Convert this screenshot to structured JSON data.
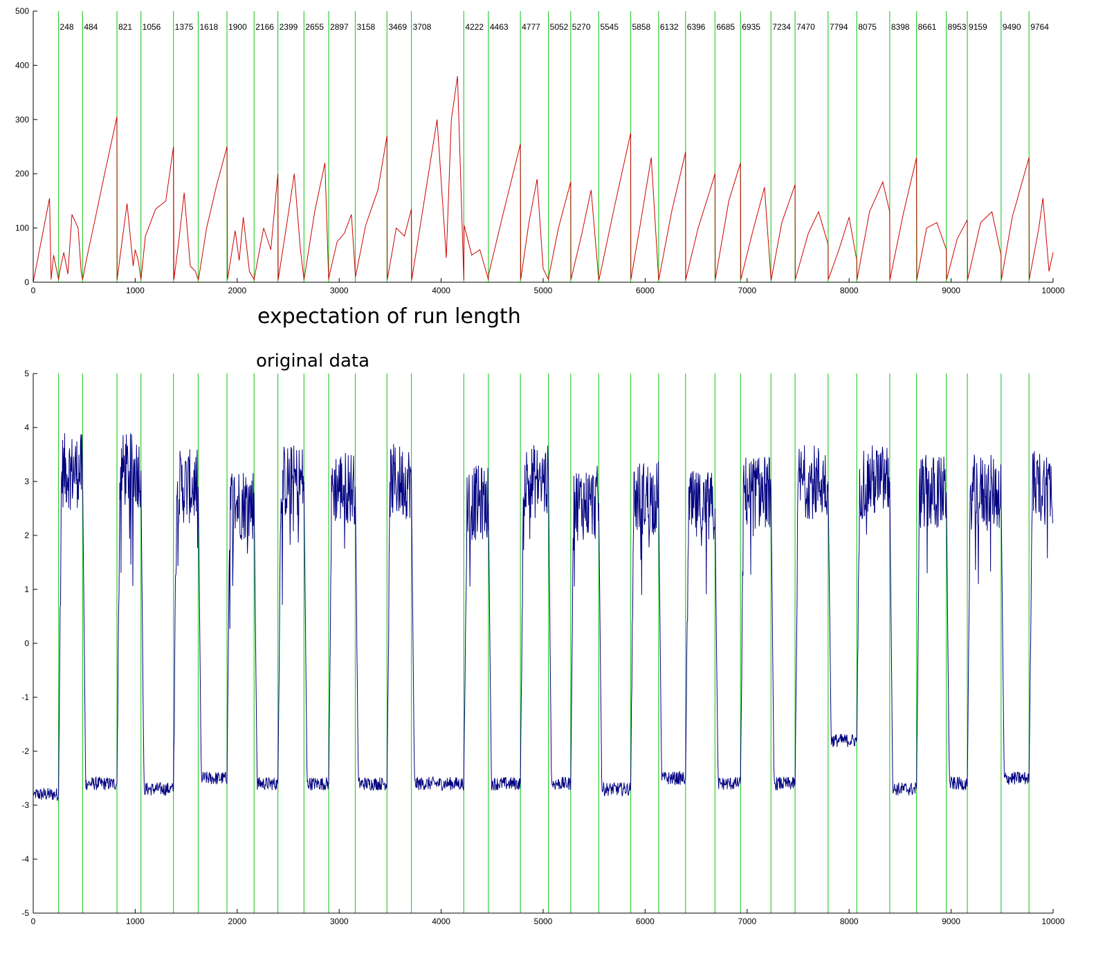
{
  "captions": {
    "top": "expectation of run length",
    "bottom": "original data"
  },
  "colors": {
    "changepoint_line": "#33cc33",
    "run_length_series": "#cc0000",
    "data_series": "#000080",
    "axis": "#000000"
  },
  "chart_data": [
    {
      "type": "line",
      "title": "",
      "xlabel": "",
      "ylabel": "",
      "xlim": [
        0,
        10000
      ],
      "ylim": [
        0,
        500
      ],
      "xticks": [
        0,
        1000,
        2000,
        3000,
        4000,
        5000,
        6000,
        7000,
        8000,
        9000,
        10000
      ],
      "yticks": [
        0,
        100,
        200,
        300,
        400,
        500
      ],
      "grid": false,
      "changepoints": [
        248,
        484,
        821,
        1056,
        1375,
        1618,
        1900,
        2166,
        2399,
        2655,
        2897,
        3158,
        3469,
        3708,
        4222,
        4463,
        4777,
        5052,
        5270,
        5545,
        5858,
        6132,
        6396,
        6685,
        6935,
        7234,
        7470,
        7794,
        8075,
        8398,
        8661,
        8953,
        9159,
        9490,
        9764
      ],
      "changepoint_labels": [
        "248",
        "484",
        "821",
        "1056",
        "1375",
        "1618",
        "1900",
        "2166",
        "2399",
        "2655",
        "2897",
        "3158",
        "3469",
        "3708",
        "4222",
        "4463",
        "4777",
        "5052",
        "5270",
        "5545",
        "5858",
        "6132",
        "6396",
        "6685",
        "6935",
        "7234",
        "7470",
        "7794",
        "8075",
        "8398",
        "8661",
        "8953",
        "9159",
        "9490",
        "9764"
      ],
      "series": [
        {
          "x": [
            0,
            160,
            175,
            200,
            248,
            260,
            300,
            340,
            380,
            440,
            470,
            484,
            490,
            520,
            600,
            700,
            821,
            823,
            860,
            920,
            980,
            1000,
            1030,
            1056,
            1060,
            1100,
            1200,
            1300,
            1375,
            1380,
            1430,
            1480,
            1540,
            1590,
            1618,
            1625,
            1700,
            1800,
            1900,
            1905,
            1980,
            2020,
            2060,
            2120,
            2166,
            2170,
            2260,
            2330,
            2399,
            2402,
            2480,
            2560,
            2620,
            2655,
            2660,
            2760,
            2860,
            2897,
            2900,
            2980,
            3050,
            3120,
            3158,
            3160,
            3260,
            3380,
            3469,
            3472,
            3560,
            3640,
            3708,
            3712,
            3800,
            3960,
            4050,
            4100,
            4160,
            4222,
            4225,
            4300,
            4380,
            4463,
            4466,
            4600,
            4777,
            4780,
            4860,
            4940,
            5000,
            5052,
            5055,
            5150,
            5270,
            5273,
            5380,
            5470,
            5545,
            5548,
            5700,
            5858,
            5860,
            5960,
            6060,
            6132,
            6134,
            6260,
            6396,
            6398,
            6520,
            6620,
            6685,
            6688,
            6820,
            6935,
            6938,
            7050,
            7170,
            7234,
            7237,
            7340,
            7470,
            7472,
            7600,
            7700,
            7794,
            7796,
            7900,
            8000,
            8075,
            8078,
            8200,
            8330,
            8398,
            8400,
            8530,
            8661,
            8664,
            8760,
            8860,
            8953,
            8956,
            9060,
            9159,
            9162,
            9290,
            9400,
            9490,
            9493,
            9600,
            9764,
            9766,
            9860,
            9900,
            9960,
            10000
          ],
          "values": [
            0,
            155,
            5,
            50,
            5,
            20,
            55,
            15,
            125,
            100,
            20,
            5,
            10,
            40,
            110,
            200,
            305,
            5,
            60,
            145,
            30,
            60,
            40,
            5,
            10,
            85,
            135,
            150,
            250,
            5,
            80,
            165,
            30,
            20,
            5,
            10,
            100,
            180,
            250,
            5,
            95,
            40,
            120,
            20,
            5,
            10,
            100,
            60,
            200,
            5,
            100,
            200,
            60,
            5,
            10,
            130,
            220,
            5,
            10,
            75,
            90,
            125,
            15,
            10,
            105,
            170,
            270,
            5,
            100,
            85,
            135,
            5,
            110,
            300,
            45,
            300,
            380,
            5,
            105,
            50,
            60,
            5,
            15,
            120,
            255,
            5,
            110,
            190,
            25,
            5,
            10,
            100,
            185,
            5,
            90,
            170,
            5,
            5,
            140,
            275,
            5,
            115,
            230,
            5,
            5,
            130,
            240,
            5,
            100,
            160,
            200,
            5,
            150,
            220,
            5,
            90,
            175,
            5,
            5,
            110,
            180,
            5,
            90,
            130,
            70,
            5,
            60,
            120,
            40,
            5,
            130,
            185,
            130,
            5,
            125,
            230,
            5,
            100,
            110,
            60,
            5,
            80,
            115,
            5,
            110,
            130,
            50,
            5,
            120,
            230,
            5,
            100,
            155,
            20,
            55
          ]
        }
      ]
    },
    {
      "type": "line",
      "title": "",
      "xlabel": "",
      "ylabel": "",
      "xlim": [
        0,
        10000
      ],
      "ylim": [
        -5,
        5
      ],
      "xticks": [
        0,
        1000,
        2000,
        3000,
        4000,
        5000,
        6000,
        7000,
        8000,
        9000,
        10000
      ],
      "yticks": [
        -5,
        -4,
        -3,
        -2,
        -1,
        0,
        1,
        2,
        3,
        4,
        5
      ],
      "grid": false,
      "changepoints": [
        248,
        484,
        821,
        1056,
        1375,
        1618,
        1900,
        2166,
        2399,
        2655,
        2897,
        3158,
        3469,
        3708,
        4222,
        4463,
        4777,
        5052,
        5270,
        5545,
        5858,
        6132,
        6396,
        6685,
        6935,
        7234,
        7470,
        7794,
        8075,
        8398,
        8661,
        8953,
        9159,
        9490,
        9764
      ],
      "segment_means": [
        -2.8,
        3.2,
        -2.6,
        3.2,
        -2.7,
        2.9,
        -2.5,
        2.6,
        -2.6,
        3.0,
        -2.6,
        2.9,
        -2.6,
        3.0,
        -2.6,
        2.6,
        -2.6,
        3.0,
        -2.6,
        2.6,
        -2.7,
        2.7,
        -2.5,
        2.5,
        -2.6,
        2.8,
        -2.6,
        3.0,
        -1.8,
        3.0,
        -2.7,
        2.8,
        -2.6,
        2.8,
        -2.5,
        2.9
      ]
    }
  ]
}
